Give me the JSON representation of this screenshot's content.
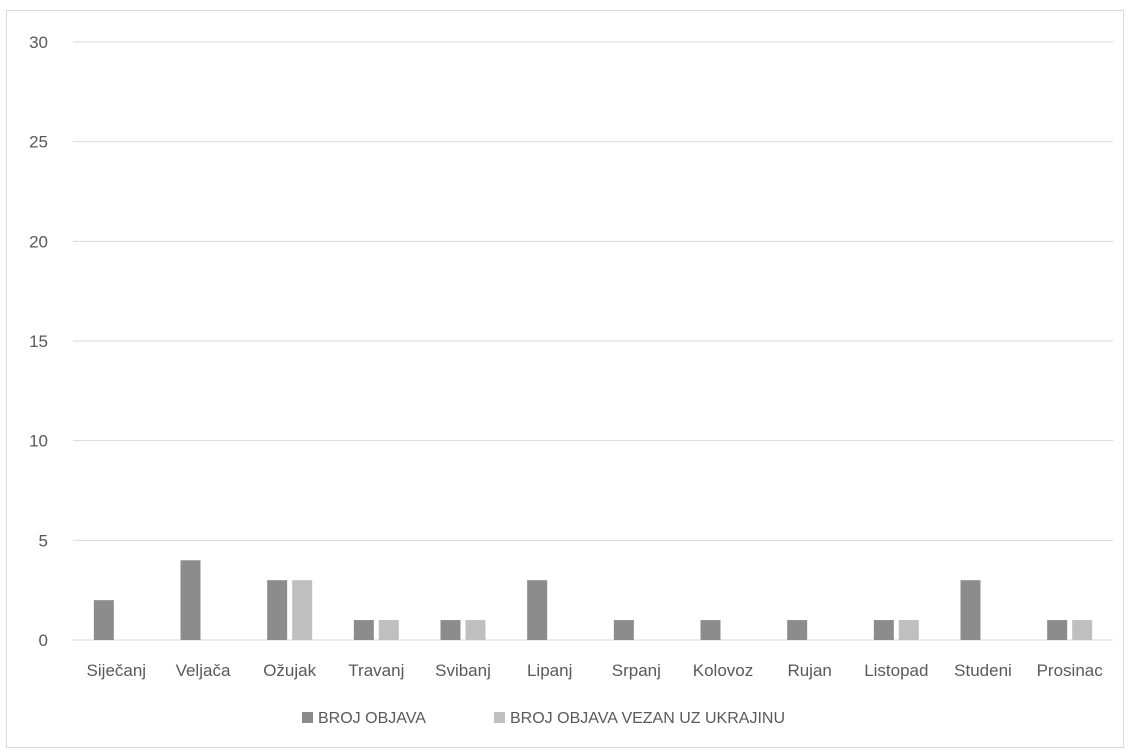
{
  "chart_data": {
    "type": "bar",
    "categories": [
      "Siječanj",
      "Veljača",
      "Ožujak",
      "Travanj",
      "Svibanj",
      "Lipanj",
      "Srpanj",
      "Kolovoz",
      "Rujan",
      "Listopad",
      "Studeni",
      "Prosinac"
    ],
    "series": [
      {
        "name": "BROJ OBJAVA",
        "color": "#8c8c8c",
        "values": [
          2,
          4,
          3,
          1,
          1,
          3,
          1,
          1,
          1,
          1,
          3,
          1
        ]
      },
      {
        "name": "BROJ OBJAVA VEZAN UZ UKRAJINU",
        "color": "#bfbfbf",
        "values": [
          0,
          0,
          3,
          1,
          1,
          0,
          0,
          0,
          0,
          1,
          0,
          1
        ]
      }
    ],
    "ylim": [
      0,
      30
    ],
    "yticks": [
      0,
      5,
      10,
      15,
      20,
      25,
      30
    ],
    "grid": true,
    "legend_position": "bottom"
  }
}
